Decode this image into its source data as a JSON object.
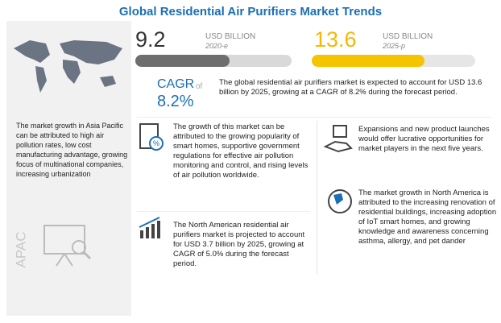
{
  "title": "Global Residential Air Purifiers Market Trends",
  "region": {
    "label": "APAC",
    "text": "The market growth in Asia Pacific can be attributed to high air pollution rates, low cost manufacturing advantage, growing focus of multinational companies, increasing urbanization"
  },
  "stats": [
    {
      "value": 9.2,
      "unit": "USD BILLION",
      "year": "2020-e"
    },
    {
      "value": 13.6,
      "unit": "USD BILLION",
      "year": "2025-p"
    }
  ],
  "cagr": {
    "label": "CAGR",
    "of": "of",
    "value": "8.2%",
    "text": "The global residential air purifiers market is expected to account for USD 13.6 billion by 2025, growing at a CAGR of 8.2% during the forecast period."
  },
  "blocks": [
    "The growth of this market can be attributed to the growing popularity of smart homes, supportive government regulations for effective air pollution monitoring and control, and rising levels of air pollution worldwide.",
    "Expansions and new product launches would offer lucrative opportunities for market players in the next five years.",
    "The North American residential air purifiers market is projected to account for USD 3.7 billion by 2025, growing at CAGR of 5.0% during the forecast period.",
    "The market growth in North America is attributed to the increasing renovation of residential buildings, increasing adoption of IoT smart homes, and growing knowledge and awareness concerning asthma, allergy, and pet dander"
  ]
}
